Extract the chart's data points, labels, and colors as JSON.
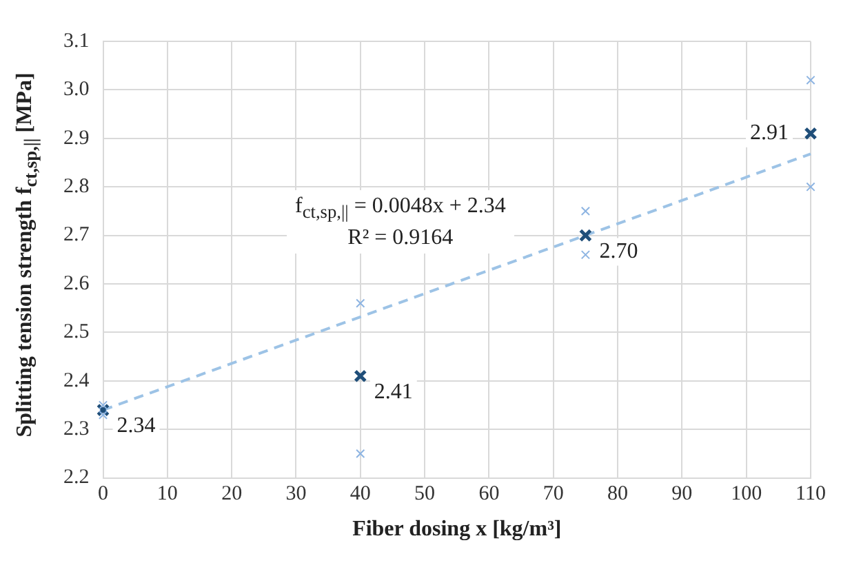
{
  "chart_data": {
    "type": "scatter",
    "xlabel": "Fiber dosing x [kg/m³]",
    "ylabel": "Splitting tension strength f$_{ct,sp,||}$  [MPa]",
    "xlim": [
      0,
      110
    ],
    "xticks": [
      0,
      10,
      20,
      30,
      40,
      50,
      60,
      70,
      80,
      90,
      100,
      110
    ],
    "ylim": [
      2.2,
      3.1
    ],
    "yticks": [
      2.2,
      2.3,
      2.4,
      2.5,
      2.6,
      2.7,
      2.8,
      2.9,
      {
        "value": 3,
        "label": "3.0"
      },
      3.1
    ],
    "grid": true,
    "legend": false,
    "marker": "cross",
    "annotations": [
      "f$_{ct,sp,||}$ = 0.0048x + 2.34",
      "R² = 0.9164"
    ],
    "series": [
      {
        "type": "scatter",
        "color": "#8db4e2",
        "x": [
          0,
          0,
          40,
          40,
          75,
          75,
          110,
          110
        ],
        "values": [
          2.35,
          2.33,
          2.56,
          2.25,
          2.75,
          2.66,
          3.02,
          2.8
        ]
      },
      {
        "type": "scatter",
        "color": "#1f4e79",
        "x": [
          0,
          40,
          75,
          110
        ],
        "values": [
          2.34,
          2.41,
          2.7,
          2.91
        ],
        "value_labels": [
          "2.34",
          "2.41",
          "2.70",
          "2.91"
        ]
      },
      {
        "type": "line",
        "color": "#9dc3e6",
        "x": [
          0,
          110
        ],
        "values": [
          2.34,
          2.868
        ],
        "line_style": "dashed",
        "marker": "none"
      }
    ]
  }
}
